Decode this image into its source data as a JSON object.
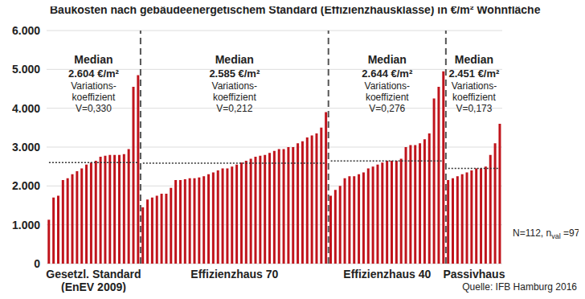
{
  "chart_data": {
    "type": "bar",
    "title": "Baukosten nach gebäudeenergetischem Standard (Effizienzhausklasse) in €/m² Wohnfläche",
    "color": "#c0141c",
    "grid": true,
    "tick_labels": "y",
    "ylim": [
      0,
      6000
    ],
    "yticks": [
      0,
      {
        "value": 1000,
        "label": "1.000"
      },
      {
        "value": 2000,
        "label": "2.000"
      },
      {
        "value": 3000,
        "label": "3.000"
      },
      {
        "value": 4000,
        "label": "4.000"
      },
      {
        "value": 5000,
        "label": "5.000"
      },
      {
        "value": 6000,
        "label": "6.000"
      }
    ],
    "categories": [
      null,
      null,
      null,
      null,
      null,
      null,
      null,
      null,
      null,
      null,
      null,
      null,
      null,
      null,
      null,
      null,
      null,
      null,
      null,
      null,
      null,
      null,
      null,
      null,
      null,
      null,
      null,
      null,
      null,
      null,
      null,
      null,
      null,
      null,
      null,
      null,
      null,
      null,
      null,
      null,
      null,
      null,
      null,
      null,
      null,
      null,
      null,
      null,
      null,
      null,
      null,
      null,
      null,
      null,
      null,
      null,
      null,
      null,
      null,
      null,
      null,
      null,
      null,
      null,
      null,
      null,
      null,
      null,
      null,
      null,
      null,
      null,
      null,
      null,
      null,
      null,
      null,
      null,
      null,
      null,
      null,
      null,
      null,
      null,
      null,
      null,
      null,
      null,
      null,
      null,
      null,
      null,
      null,
      null,
      null,
      null,
      null
    ],
    "values": [
      1130,
      1700,
      1750,
      2150,
      2200,
      2300,
      2380,
      2450,
      2550,
      2600,
      2650,
      2750,
      2780,
      2800,
      2800,
      2800,
      2820,
      2950,
      4550,
      4850,
      1450,
      1650,
      1700,
      1750,
      1800,
      1800,
      1950,
      2150,
      2150,
      2170,
      2200,
      2200,
      2220,
      2250,
      2300,
      2350,
      2400,
      2450,
      2450,
      2500,
      2550,
      2600,
      2650,
      2700,
      2750,
      2780,
      2800,
      2850,
      2900,
      2950,
      2950,
      3000,
      3000,
      3100,
      3150,
      3250,
      3300,
      3350,
      3500,
      3900,
      1750,
      1900,
      2000,
      2200,
      2250,
      2250,
      2300,
      2350,
      2450,
      2500,
      2550,
      2600,
      2650,
      2650,
      2650,
      2700,
      3000,
      3050,
      3050,
      3100,
      3200,
      3350,
      4250,
      4550,
      4950,
      2150,
      2200,
      2250,
      2300,
      2350,
      2400,
      2450,
      2450,
      2500,
      2800,
      3100,
      3600
    ],
    "groups": [
      {
        "label": [
          "Gesetzl. Standard",
          "(EnEV 2009)"
        ],
        "count": 20,
        "median": 2604,
        "median_label": "2.604 €/m²",
        "cv": 0.33,
        "cv_label": "V=0,330"
      },
      {
        "label": [
          "Effizienzhaus 70"
        ],
        "count": 40,
        "median": 2585,
        "median_label": "2.585 €/m²",
        "cv": 0.212,
        "cv_label": "V=0,212"
      },
      {
        "label": [
          "Effizienzhaus 40"
        ],
        "count": 25,
        "median": 2644,
        "median_label": "2.644 €/m²",
        "cv": 0.276,
        "cv_label": "V=0,276"
      },
      {
        "label": [
          "Passivhaus"
        ],
        "count": 12,
        "median": 2451,
        "median_label": "2.451 €/m²",
        "cv": 0.173,
        "cv_label": "V=0,173"
      }
    ],
    "median_heading": "Median",
    "cv_heading": [
      "Variations-",
      "koeffizient"
    ],
    "sample_note": [
      "N=112, n",
      "val",
      " =97"
    ],
    "source": "Quelle: IFB Hamburg 2016"
  }
}
